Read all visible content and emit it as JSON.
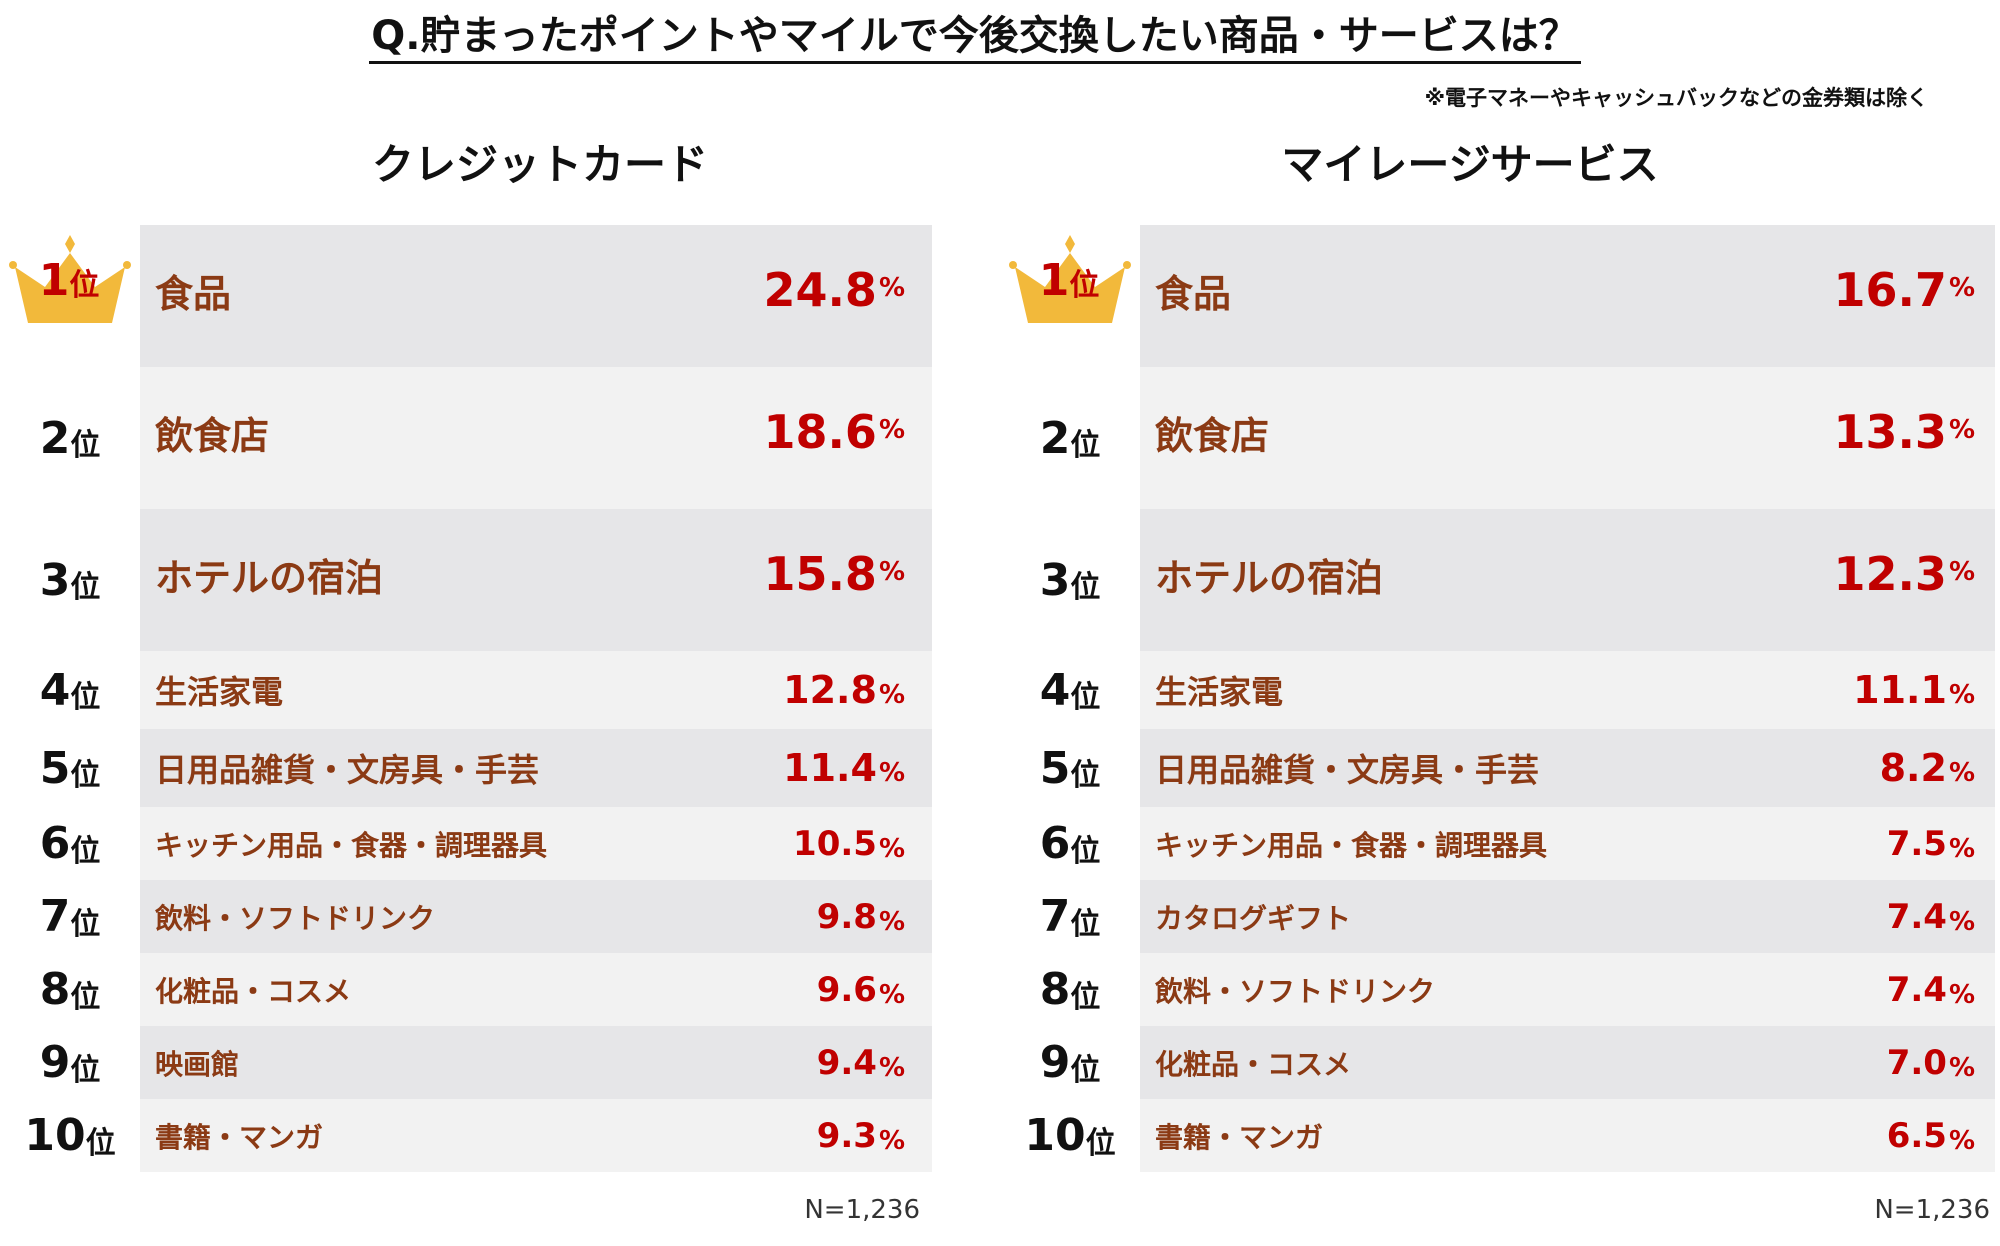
{
  "title": "Q.貯まったポイントやマイルで今後交換したい商品・サービスは？",
  "note": "※電子マネーやキャッシュバックなどの金券類は除く",
  "rank_suffix": "位",
  "percent_sign": "%",
  "colors": {
    "label": "#8b3a14",
    "value": "#c00000",
    "crown": "#f2b93b",
    "row_light": "#f2f2f2",
    "row_dark": "#e6e6e8"
  },
  "chart_data": [
    {
      "type": "table",
      "title": "クレジットカード",
      "n_label": "N=1,236",
      "rows": [
        {
          "rank": "1",
          "item": "食品",
          "value": "24.8"
        },
        {
          "rank": "2",
          "item": "飲食店",
          "value": "18.6"
        },
        {
          "rank": "3",
          "item": "ホテルの宿泊",
          "value": "15.8"
        },
        {
          "rank": "4",
          "item": "生活家電",
          "value": "12.8"
        },
        {
          "rank": "5",
          "item": "日用品雑貨・文房具・手芸",
          "value": "11.4"
        },
        {
          "rank": "6",
          "item": "キッチン用品・食器・調理器具",
          "value": "10.5"
        },
        {
          "rank": "7",
          "item": "飲料・ソフトドリンク",
          "value": "9.8"
        },
        {
          "rank": "8",
          "item": "化粧品・コスメ",
          "value": "9.6"
        },
        {
          "rank": "9",
          "item": "映画館",
          "value": "9.4"
        },
        {
          "rank": "10",
          "item": "書籍・マンガ",
          "value": "9.3"
        }
      ]
    },
    {
      "type": "table",
      "title": "マイレージサービス",
      "n_label": "N=1,236",
      "rows": [
        {
          "rank": "1",
          "item": "食品",
          "value": "16.7"
        },
        {
          "rank": "2",
          "item": "飲食店",
          "value": "13.3"
        },
        {
          "rank": "3",
          "item": "ホテルの宿泊",
          "value": "12.3"
        },
        {
          "rank": "4",
          "item": "生活家電",
          "value": "11.1"
        },
        {
          "rank": "5",
          "item": "日用品雑貨・文房具・手芸",
          "value": "8.2"
        },
        {
          "rank": "6",
          "item": "キッチン用品・食器・調理器具",
          "value": "7.5"
        },
        {
          "rank": "7",
          "item": "カタログギフト",
          "value": "7.4"
        },
        {
          "rank": "8",
          "item": "飲料・ソフトドリンク",
          "value": "7.4"
        },
        {
          "rank": "9",
          "item": "化粧品・コスメ",
          "value": "7.0"
        },
        {
          "rank": "10",
          "item": "書籍・マンガ",
          "value": "6.5"
        }
      ]
    }
  ]
}
